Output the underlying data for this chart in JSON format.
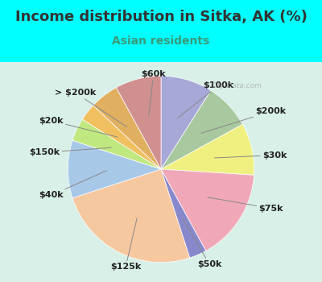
{
  "title": "Income distribution in Sitka, AK (%)",
  "subtitle": "Asian residents",
  "title_color": "#333333",
  "subtitle_color": "#3a9a7a",
  "background_outer": "#00FFFF",
  "labels": [
    "$100k",
    "$200k",
    "$30k",
    "$75k",
    "$50k",
    "$125k",
    "$40k",
    "$150k",
    "$20k",
    "> $200k",
    "$60k"
  ],
  "values": [
    9,
    8,
    9,
    16,
    3,
    25,
    10,
    4,
    3,
    5,
    8
  ],
  "colors": [
    "#a8a8d8",
    "#a8c8a0",
    "#f0f080",
    "#f0a8b8",
    "#8888cc",
    "#f5c8a0",
    "#a8c8e8",
    "#c0e880",
    "#f0c060",
    "#e0b060",
    "#d09090"
  ],
  "startangle": 90,
  "label_fontsize": 8,
  "title_fontsize": 13,
  "subtitle_fontsize": 10
}
